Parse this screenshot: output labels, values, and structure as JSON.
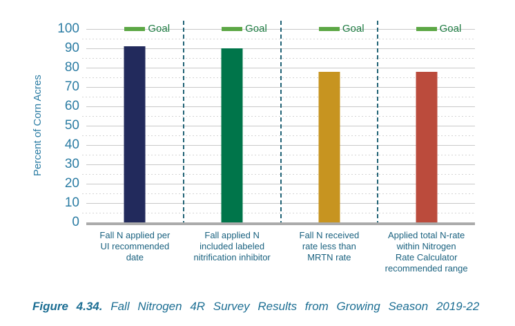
{
  "chart_data": {
    "type": "bar",
    "title": "Fall Nitrogen 4R Survey Results from Growing Season 2019-22",
    "ylabel": "Percent of Corn Acres",
    "ylim": [
      0,
      100
    ],
    "yticks": [
      0,
      10,
      20,
      30,
      40,
      50,
      60,
      70,
      80,
      90,
      100
    ],
    "minor_ticks": [
      5,
      15,
      25,
      35,
      45,
      55,
      65,
      75,
      85,
      95
    ],
    "categories": [
      "Fall N applied per UI recommended date",
      "Fall applied N included labeled nitrification inhibitor",
      "Fall N received rate less than MRTN rate",
      "Applied total N-rate within Nitrogen Rate Calculator recommended range"
    ],
    "category_label_lines": [
      [
        "Fall N applied per",
        "UI recommended",
        "date"
      ],
      [
        "Fall applied N",
        "included labeled",
        "nitrification inhibitor"
      ],
      [
        "Fall N received",
        "rate less than",
        "MRTN rate"
      ],
      [
        "Applied total N-rate",
        "within Nitrogen",
        "Rate Calculator",
        "recommended range"
      ]
    ],
    "values": [
      91,
      90,
      78,
      78
    ],
    "bar_colors": [
      "#222A5C",
      "#00754A",
      "#C79420",
      "#BB4B3C"
    ],
    "goal": {
      "value": 100,
      "label": "Goal",
      "marker_color": "#5CA745",
      "label_color": "#1C7A40"
    },
    "grid": {
      "major": "solid",
      "minor": "dotted",
      "separators": "dashed vertical between categories"
    },
    "legend_position": "goal marker above each bar"
  },
  "caption": {
    "figure_label": "Figure 4.34.",
    "text": "Fall Nitrogen 4R Survey Results from Growing Season 2019-22"
  },
  "colors": {
    "axis_text": "#2B7CA3",
    "category_text": "#19617F",
    "caption_text": "#1C6E93",
    "separator": "#1E6174",
    "grid_major": "#C8C8C8",
    "grid_minor": "#D3D3D3",
    "axis_line": "#ABABAB"
  }
}
